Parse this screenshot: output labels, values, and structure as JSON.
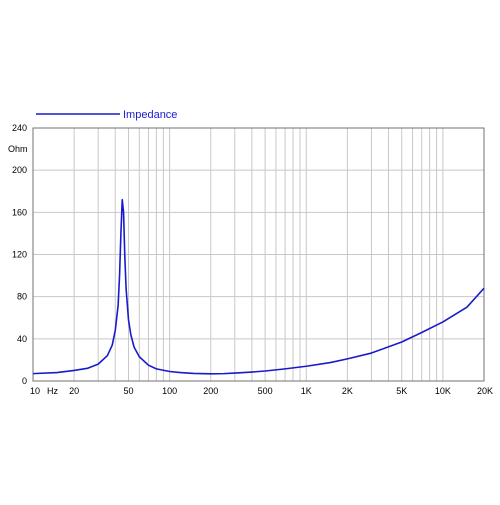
{
  "chart_data": {
    "type": "line",
    "title": "",
    "xlabel": "Hz",
    "ylabel": "Ohm",
    "x_scale": "log",
    "xlim": [
      10,
      20000
    ],
    "ylim": [
      0,
      240
    ],
    "grid": true,
    "legend_position": "top-left",
    "x_ticks": [
      10,
      20,
      50,
      100,
      200,
      500,
      1000,
      2000,
      5000,
      10000,
      20000
    ],
    "x_tick_labels": [
      "10",
      "20",
      "50",
      "100",
      "200",
      "500",
      "1K",
      "2K",
      "5K",
      "10K",
      "20K"
    ],
    "y_ticks": [
      0,
      40,
      80,
      120,
      160,
      200,
      240
    ],
    "y_tick_labels": [
      "0",
      "40",
      "80",
      "120",
      "160",
      "200",
      "240"
    ],
    "series": [
      {
        "name": "Impedance",
        "color": "#1a1acc",
        "x": [
          10,
          15,
          20,
          25,
          30,
          35,
          38,
          40,
          42,
          43,
          44,
          45,
          46,
          47,
          48,
          50,
          52,
          55,
          60,
          70,
          80,
          100,
          120,
          150,
          200,
          250,
          300,
          400,
          500,
          700,
          1000,
          1500,
          2000,
          3000,
          5000,
          7000,
          10000,
          15000,
          20000
        ],
        "y": [
          7,
          8,
          10,
          12,
          16,
          24,
          34,
          48,
          72,
          100,
          140,
          172,
          160,
          118,
          88,
          58,
          44,
          32,
          23,
          15,
          11.5,
          9,
          8,
          7.2,
          6.8,
          7,
          7.5,
          8.5,
          9.5,
          11.5,
          14,
          17.5,
          21,
          26.5,
          37,
          46,
          56,
          70,
          88
        ]
      }
    ]
  }
}
